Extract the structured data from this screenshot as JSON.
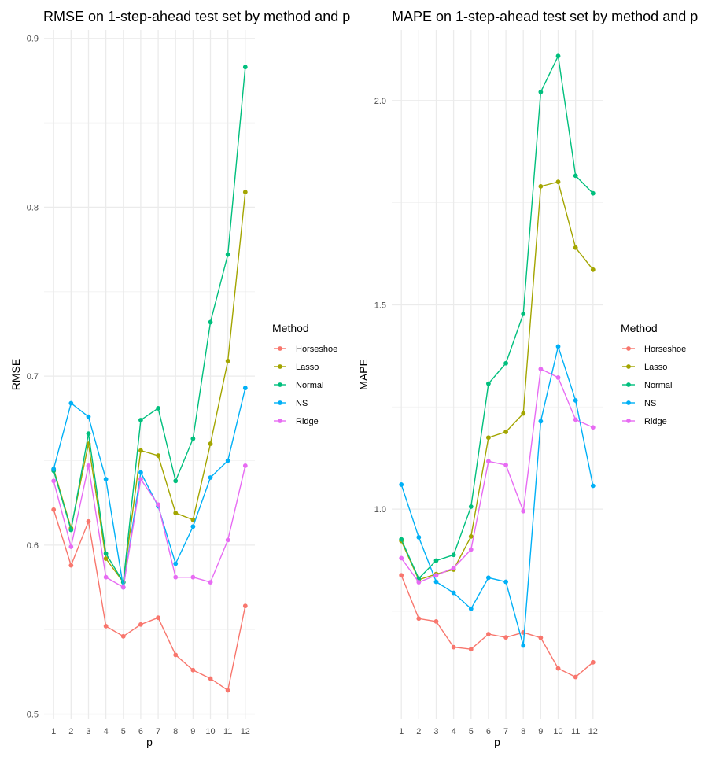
{
  "chart_data": [
    {
      "type": "line",
      "title": "RMSE on 1-step-ahead test set by method and p",
      "xlabel": "p",
      "ylabel": "RMSE",
      "x": [
        1,
        2,
        3,
        4,
        5,
        6,
        7,
        8,
        9,
        10,
        11,
        12
      ],
      "ylim": [
        0.497,
        0.905
      ],
      "yticks": [
        0.5,
        0.6,
        0.7,
        0.8,
        0.9
      ],
      "ytick_labels": [
        "0.5",
        "0.6",
        "0.7",
        "0.8",
        "0.9"
      ],
      "grid": true,
      "legend_title": "Method",
      "legend_position": "right",
      "series": [
        {
          "name": "Horseshoe",
          "color": "#F8766D",
          "values": [
            0.621,
            0.588,
            0.614,
            0.552,
            0.546,
            0.553,
            0.557,
            0.535,
            0.526,
            0.521,
            0.514,
            0.564
          ]
        },
        {
          "name": "Lasso",
          "color": "#A3A500",
          "values": [
            0.645,
            0.61,
            0.66,
            0.592,
            0.578,
            0.656,
            0.653,
            0.619,
            0.615,
            0.66,
            0.709,
            0.809
          ]
        },
        {
          "name": "Normal",
          "color": "#00BF7D",
          "values": [
            0.644,
            0.609,
            0.666,
            0.595,
            0.578,
            0.674,
            0.681,
            0.638,
            0.663,
            0.732,
            0.772,
            0.883
          ]
        },
        {
          "name": "NS",
          "color": "#00B0F6",
          "values": [
            0.645,
            0.684,
            0.676,
            0.639,
            0.575,
            0.643,
            0.623,
            0.589,
            0.611,
            0.64,
            0.65,
            0.693
          ]
        },
        {
          "name": "Ridge",
          "color": "#E76BF3",
          "values": [
            0.638,
            0.599,
            0.647,
            0.581,
            0.575,
            0.639,
            0.624,
            0.581,
            0.581,
            0.578,
            0.603,
            0.647
          ]
        }
      ]
    },
    {
      "type": "line",
      "title": "MAPE on 1-step-ahead test set by method and p",
      "xlabel": "p",
      "ylabel": "MAPE",
      "x": [
        1,
        2,
        3,
        4,
        5,
        6,
        7,
        8,
        9,
        10,
        11,
        12
      ],
      "ylim": [
        0.486,
        2.173
      ],
      "yticks": [
        1.0,
        1.5,
        2.0
      ],
      "ytick_labels": [
        "1.0",
        "1.5",
        "2.0"
      ],
      "grid": true,
      "legend_title": "Method",
      "legend_position": "right",
      "series": [
        {
          "name": "Horseshoe",
          "color": "#F8766D",
          "values": [
            0.838,
            0.732,
            0.725,
            0.662,
            0.657,
            0.694,
            0.686,
            0.698,
            0.685,
            0.61,
            0.589,
            0.625
          ]
        },
        {
          "name": "Lasso",
          "color": "#A3A500",
          "values": [
            0.922,
            0.827,
            0.841,
            0.852,
            0.933,
            1.175,
            1.189,
            1.234,
            1.79,
            1.801,
            1.64,
            1.586
          ]
        },
        {
          "name": "Normal",
          "color": "#00BF7D",
          "values": [
            0.926,
            0.83,
            0.874,
            0.888,
            1.006,
            1.307,
            1.357,
            1.478,
            2.021,
            2.109,
            1.816,
            1.773
          ]
        },
        {
          "name": "NS",
          "color": "#00B0F6",
          "values": [
            1.06,
            0.931,
            0.822,
            0.795,
            0.756,
            0.832,
            0.822,
            0.666,
            1.215,
            1.398,
            1.266,
            1.057
          ]
        },
        {
          "name": "Ridge",
          "color": "#E76BF3",
          "values": [
            0.88,
            0.821,
            0.838,
            0.856,
            0.901,
            1.117,
            1.108,
            0.995,
            1.343,
            1.322,
            1.219,
            1.2
          ]
        }
      ]
    }
  ]
}
